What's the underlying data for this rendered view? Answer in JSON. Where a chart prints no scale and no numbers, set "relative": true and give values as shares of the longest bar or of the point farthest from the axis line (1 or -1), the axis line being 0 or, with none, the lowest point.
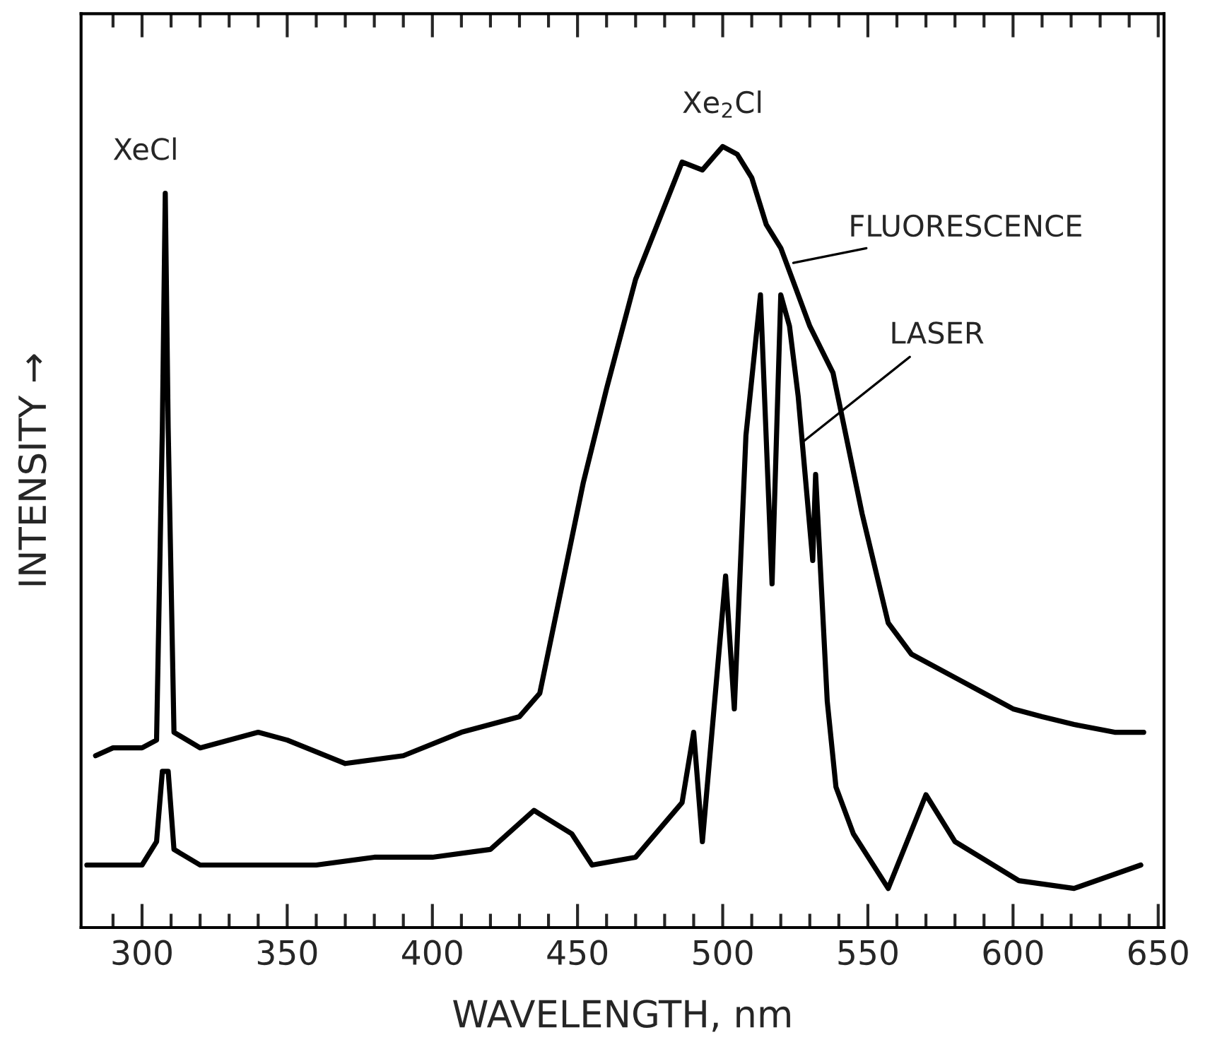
{
  "chart_data": {
    "type": "line",
    "relative": true,
    "xlabel": "WAVELENGTH, nm",
    "ylabel": "INTENSITY →",
    "xlim": [
      279,
      652
    ],
    "xticks": [
      {
        "value": 290,
        "label": null
      },
      300,
      {
        "value": 310,
        "label": null
      },
      {
        "value": 320,
        "label": null
      },
      {
        "value": 330,
        "label": null
      },
      {
        "value": 340,
        "label": null
      },
      350,
      {
        "value": 360,
        "label": null
      },
      {
        "value": 370,
        "label": null
      },
      {
        "value": 380,
        "label": null
      },
      {
        "value": 390,
        "label": null
      },
      400,
      {
        "value": 410,
        "label": null
      },
      {
        "value": 420,
        "label": null
      },
      {
        "value": 430,
        "label": null
      },
      {
        "value": 440,
        "label": null
      },
      450,
      {
        "value": 460,
        "label": null
      },
      {
        "value": 470,
        "label": null
      },
      {
        "value": 480,
        "label": null
      },
      {
        "value": 490,
        "label": null
      },
      500,
      {
        "value": 510,
        "label": null
      },
      {
        "value": 520,
        "label": null
      },
      {
        "value": 530,
        "label": null
      },
      {
        "value": 540,
        "label": null
      },
      550,
      {
        "value": 560,
        "label": null
      },
      {
        "value": 570,
        "label": null
      },
      {
        "value": 580,
        "label": null
      },
      {
        "value": 590,
        "label": null
      },
      600,
      {
        "value": 610,
        "label": null
      },
      {
        "value": 620,
        "label": null
      },
      {
        "value": 630,
        "label": null
      },
      {
        "value": 640,
        "label": null
      },
      650
    ],
    "grid": false,
    "legend": false,
    "series": [
      {
        "color": "#000000",
        "x": [
          284,
          290,
          300,
          305,
          307,
          308,
          309,
          311,
          320,
          340,
          350,
          370,
          390,
          410,
          420,
          430,
          437,
          442,
          452,
          460,
          470,
          486,
          493,
          500,
          505,
          510,
          515,
          520,
          525,
          530,
          538,
          548,
          557,
          565,
          580,
          590,
          600,
          610,
          621,
          635,
          645
        ],
        "values": [
          0.22,
          0.23,
          0.23,
          0.24,
          0.64,
          0.94,
          0.64,
          0.25,
          0.23,
          0.25,
          0.24,
          0.21,
          0.22,
          0.25,
          0.26,
          0.27,
          0.3,
          0.39,
          0.57,
          0.69,
          0.83,
          0.98,
          0.97,
          1.0,
          0.99,
          0.96,
          0.9,
          0.87,
          0.82,
          0.77,
          0.71,
          0.53,
          0.39,
          0.35,
          0.32,
          0.3,
          0.28,
          0.27,
          0.26,
          0.25,
          0.25
        ]
      },
      {
        "color": "#000000",
        "x": [
          281,
          290,
          300,
          305,
          307,
          309,
          311,
          320,
          340,
          360,
          380,
          400,
          420,
          435,
          448,
          455,
          470,
          486,
          490,
          493,
          501,
          504,
          508,
          513,
          517,
          520,
          523,
          526,
          531,
          532,
          536,
          539,
          545,
          557,
          570,
          580,
          602,
          621,
          644
        ],
        "values": [
          0.08,
          0.08,
          0.08,
          0.11,
          0.2,
          0.2,
          0.1,
          0.08,
          0.08,
          0.08,
          0.09,
          0.09,
          0.1,
          0.15,
          0.12,
          0.08,
          0.09,
          0.16,
          0.25,
          0.11,
          0.45,
          0.28,
          0.63,
          0.81,
          0.44,
          0.81,
          0.77,
          0.68,
          0.47,
          0.58,
          0.29,
          0.18,
          0.12,
          0.05,
          0.17,
          0.11,
          0.06,
          0.05,
          0.08
        ]
      }
    ],
    "annotations": [
      {
        "text": "XeCl",
        "x": 308,
        "y": 0.94
      },
      {
        "text": "Xe$_{2}$Cl",
        "x": 500,
        "y": 1.0
      },
      {
        "text": "FLUORESCENCE",
        "x": 523,
        "y": 0.85
      },
      {
        "text": "LASER",
        "x": 527,
        "y": 0.62
      }
    ]
  }
}
